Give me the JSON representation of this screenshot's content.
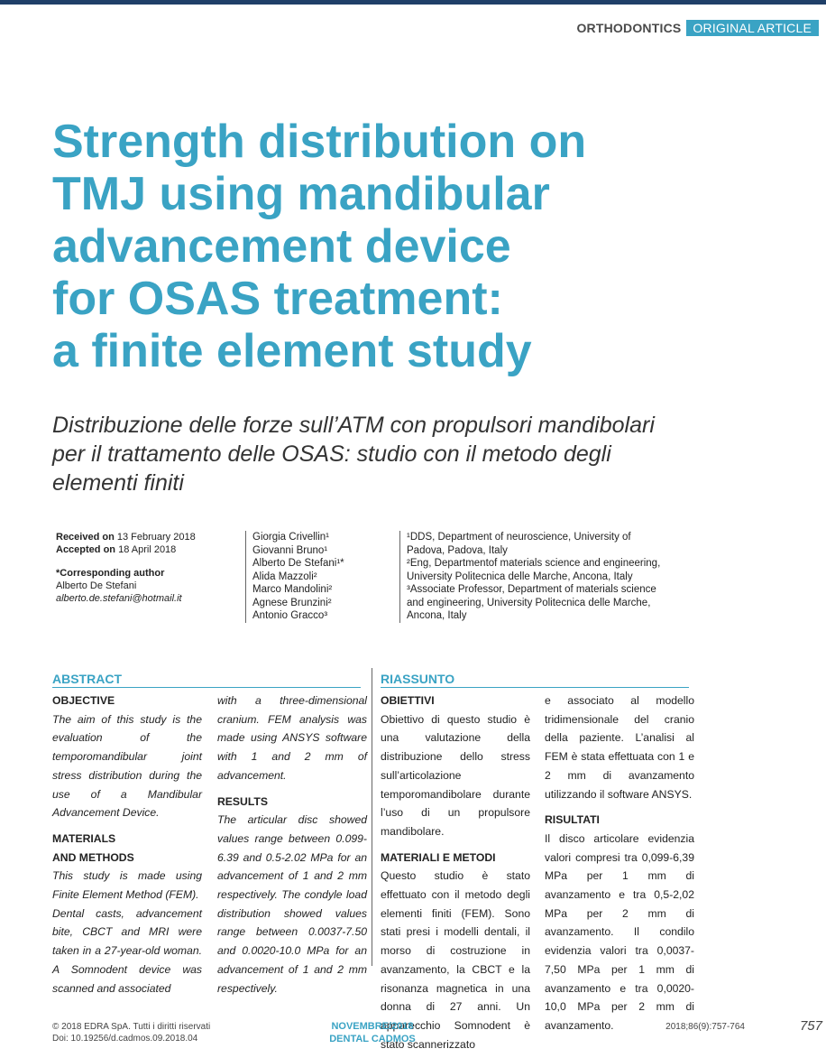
{
  "header": {
    "category": "ORTHODONTICS",
    "article_type": "ORIGINAL ARTICLE"
  },
  "title_lines": [
    "Strength distribution on",
    "TMJ using mandibular",
    "advancement device",
    "for OSAS treatment:",
    "a finite element study"
  ],
  "subtitle_lines": [
    "Distribuzione delle forze sull’ATM con propulsori mandibolari",
    "per il trattamento delle OSAS: studio con il metodo degli",
    "elementi finiti"
  ],
  "meta": {
    "received_label": "Received on",
    "received_date": "13 February 2018",
    "accepted_label": "Accepted on",
    "accepted_date": "18 April 2018",
    "corresponding_label": "*Corresponding author",
    "corresponding_name": "Alberto De Stefani",
    "corresponding_email": "alberto.de.stefani@hotmail.it"
  },
  "authors": [
    "Giorgia Crivellin¹",
    "Giovanni Bruno¹",
    "Alberto De Stefani¹*",
    "Alida Mazzoli²",
    "Marco Mandolini²",
    "Agnese Brunzini²",
    "Antonio Gracco³"
  ],
  "affiliations": [
    "¹DDS, Department of neuroscience, University of",
    "Padova, Padova, Italy",
    "²Eng, Departmentof materials science and engineering,",
    "University Politecnica delle Marche, Ancona, Italy",
    "³Associate Professor, Department of materials science",
    "and engineering, University Politecnica delle Marche,",
    "Ancona, Italy"
  ],
  "abstract": {
    "heading": "ABSTRACT",
    "objective_head": "OBJECTIVE",
    "objective_text": "The aim of this study is the evaluation of the temporomandibular joint stress distribution during the use of a Mandibular Advancement Device.",
    "methods_head_1": "MATERIALS",
    "methods_head_2": "AND METHODS",
    "methods_text_1": "This study is made using Finite Element Method (FEM).",
    "methods_text_2": "Dental casts, advancement bite, CBCT and MRI were taken in a 27-year-old woman. A Somnodent device was scanned and associated with a three-dimensional cranium. FEM analysis was made using ANSYS software with 1 and 2 mm of advancement.",
    "results_head": "RESULTS",
    "results_text": "The articular disc showed values range between 0.099-6.39 and 0.5-2.02 MPa for an advancement of 1 and 2 mm respectively. The condyle load distribution showed values range between 0.0037-7.50 and 0.0020-10.0 MPa for an advancement of 1 and 2 mm respectively."
  },
  "riassunto": {
    "heading": "RIASSUNTO",
    "obiettivi_head": "OBIETTIVI",
    "obiettivi_text": "Obiettivo di questo studio è una valutazione della distribuzione dello stress sull’articolazione temporomandibolare durante l’uso di un propulsore mandibolare.",
    "metodi_head": "MATERIALI E METODI",
    "metodi_text": "Questo studio è stato effettuato con il metodo degli elementi finiti (FEM). Sono stati presi i modelli dentali, il morso di costruzione in avanzamento, la CBCT e la risonanza magnetica in una donna di 27 anni. Un apparecchio Somnodent è stato scannerizzato e associato al modello tridimensionale del cranio della paziente. L’analisi al FEM è stata effettuata con 1 e 2 mm di avanzamento utilizzando il software ANSYS.",
    "risultati_head": "RISULTATI",
    "risultati_text": "Il disco articolare evidenzia valori compresi tra 0,099-6,39 MPa per 1 mm di avanzamento e tra 0,5-2,02 MPa per 2 mm di avanzamento. Il condilo evidenzia valori tra 0,0037-7,50 MPa per 1 mm di avanzamento e tra 0,0020-10,0 MPa per 2 mm di avanzamento."
  },
  "footer": {
    "copyright": "© 2018 EDRA SpA. Tutti i diritti riservati",
    "doi": "Doi: 10.19256/d.cadmos.09.2018.04",
    "issue": "NOVEMBRE/2018",
    "journal": "DENTAL CADMOS",
    "citation": "2018;86(9):757-764",
    "page_number": "757"
  },
  "colors": {
    "accent": "#3aa3c4",
    "top_bar": "#1f3f68"
  }
}
